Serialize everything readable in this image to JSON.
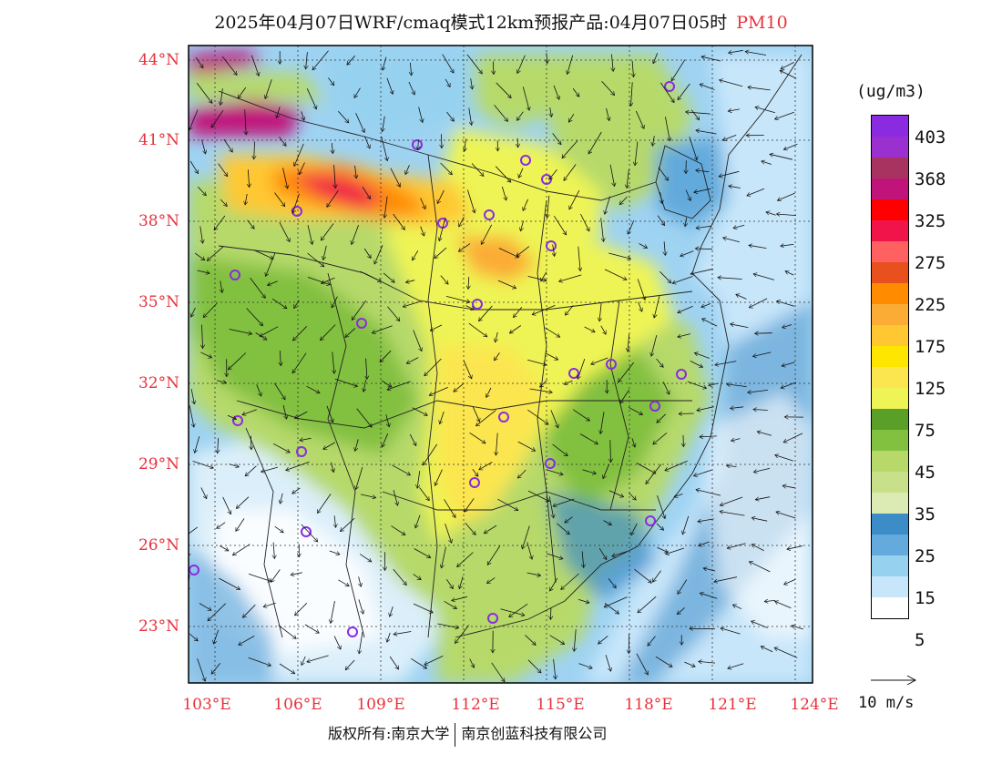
{
  "header": {
    "title": "2025年04月07日WRF/cmaq模式12km预报产品:04月07日05时",
    "parameter": "PM10"
  },
  "axes": {
    "lat_labels": [
      "44°N",
      "41°N",
      "38°N",
      "35°N",
      "32°N",
      "29°N",
      "26°N",
      "23°N"
    ],
    "lon_labels": [
      "103°E",
      "106°E",
      "109°E",
      "112°E",
      "115°E",
      "118°E",
      "121°E",
      "124°E"
    ]
  },
  "legend": {
    "unit": "(ug/m3)",
    "colors": [
      "#8a2be2",
      "#9b30d0",
      "#a83260",
      "#c0147a",
      "#ff0000",
      "#f0144a",
      "#ff6060",
      "#e8501e",
      "#ff8c00",
      "#fbac35",
      "#ffc832",
      "#ffe600",
      "#fbe650",
      "#eef455",
      "#5aa028",
      "#82c040",
      "#b6d96a",
      "#c8e08a",
      "#dcebb4",
      "#3c8cc8",
      "#64aadc",
      "#96d2f0",
      "#c8e6fa",
      "#ffffff"
    ],
    "labels": [
      "403",
      "368",
      "325",
      "275",
      "225",
      "175",
      "125",
      "75",
      "45",
      "35",
      "25",
      "15",
      "5"
    ],
    "ref_vector": "10 m/s"
  },
  "footer": {
    "copyright_left": "版权所有:南京大学",
    "copyright_right": "南京创蓝科技有限公司"
  }
}
